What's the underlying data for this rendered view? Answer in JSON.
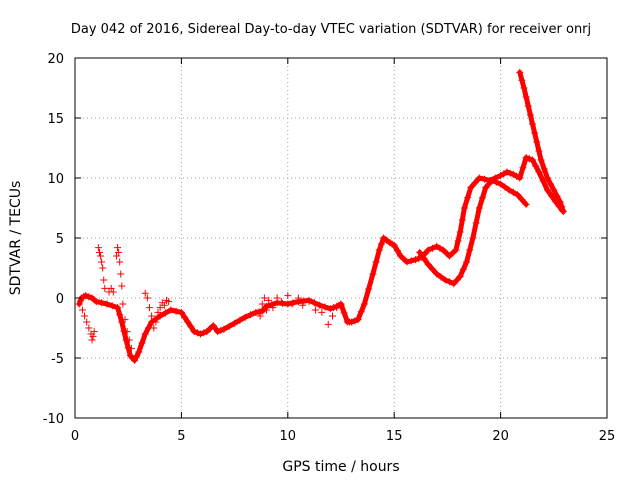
{
  "chart_data": {
    "type": "scatter",
    "title": "Day 042 of 2016, Sidereal Day-to-day VTEC variation (SDTVAR) for receiver onrj",
    "xlabel": "GPS time / hours",
    "ylabel": "SDTVAR / TECUs",
    "xlim": [
      0,
      25
    ],
    "ylim": [
      -10,
      20
    ],
    "xticks": [
      0,
      5,
      10,
      15,
      20,
      25
    ],
    "yticks": [
      -10,
      -5,
      0,
      5,
      10,
      15,
      20
    ],
    "grid": true,
    "marker": "+",
    "color": "#ff0000",
    "series": [
      {
        "name": "main",
        "kind": "dense",
        "x": [
          0.2,
          0.3,
          0.5,
          0.8,
          1.0,
          1.5,
          2.0,
          2.2,
          2.4,
          2.6,
          2.8,
          3.0,
          3.3,
          3.6,
          4.0,
          4.5,
          5.0,
          5.3,
          5.6,
          5.9,
          6.2,
          6.5,
          6.7,
          7.0,
          7.5,
          8.0,
          8.5,
          8.8,
          9.0,
          9.5,
          10.0,
          10.5,
          11.0,
          11.5,
          12.0,
          12.3,
          12.5,
          12.8,
          13.0,
          13.3,
          13.6,
          14.0,
          14.3,
          14.5,
          14.8,
          15.0,
          15.3,
          15.6,
          16.0,
          16.3,
          16.6,
          17.0,
          17.3,
          17.6,
          17.9,
          18.1,
          18.3,
          18.6,
          19.0,
          19.5,
          20.0,
          20.3,
          20.6,
          20.9,
          21.2,
          21.5,
          21.8,
          22.2,
          22.6,
          22.9
        ],
        "y": [
          -0.5,
          0.0,
          0.2,
          0.0,
          -0.3,
          -0.5,
          -0.8,
          -2.0,
          -3.5,
          -4.8,
          -5.2,
          -4.5,
          -3.0,
          -2.0,
          -1.5,
          -1.0,
          -1.2,
          -2.0,
          -2.8,
          -3.0,
          -2.8,
          -2.3,
          -2.8,
          -2.6,
          -2.1,
          -1.6,
          -1.2,
          -1.1,
          -0.7,
          -0.4,
          -0.5,
          -0.3,
          -0.2,
          -0.6,
          -0.9,
          -0.7,
          -0.5,
          -2.0,
          -2.0,
          -1.8,
          -0.5,
          2.0,
          4.0,
          5.0,
          4.6,
          4.4,
          3.5,
          3.0,
          3.2,
          3.4,
          4.0,
          4.3,
          4.0,
          3.5,
          4.0,
          5.5,
          7.5,
          9.2,
          10.0,
          9.8,
          10.2,
          10.5,
          10.3,
          10.0,
          11.7,
          11.5,
          10.5,
          9.0,
          8.0,
          7.3
        ]
      },
      {
        "name": "branch-a",
        "kind": "dense",
        "x": [
          16.2,
          16.6,
          17.0,
          17.4,
          17.8,
          18.1,
          18.4,
          18.7,
          19.0,
          19.3,
          19.6,
          20.0,
          20.4,
          20.8,
          21.2
        ],
        "y": [
          3.8,
          2.8,
          2.0,
          1.5,
          1.2,
          1.8,
          3.0,
          5.0,
          7.5,
          9.2,
          9.8,
          9.5,
          9.0,
          8.6,
          7.8
        ]
      },
      {
        "name": "branch-b",
        "kind": "dense",
        "x": [
          20.9,
          21.1,
          21.3,
          21.5,
          21.7,
          21.9,
          22.2,
          22.5,
          22.8,
          22.95
        ],
        "y": [
          18.8,
          17.5,
          16.0,
          14.5,
          13.0,
          11.5,
          10.0,
          9.0,
          8.0,
          7.2
        ]
      },
      {
        "name": "scatter-1",
        "kind": "markers",
        "x": [
          0.35,
          0.45,
          0.55,
          0.65,
          0.75,
          0.8,
          0.85,
          0.9,
          1.1,
          1.15,
          1.2,
          1.25,
          1.3,
          1.35,
          1.4,
          1.6,
          1.7,
          1.8,
          1.95,
          2.0,
          2.05,
          2.1,
          2.15,
          2.2,
          2.25,
          2.35,
          2.45,
          2.55,
          2.65
        ],
        "y": [
          -1.0,
          -1.5,
          -2.0,
          -2.5,
          -3.0,
          -3.5,
          -3.2,
          -2.8,
          4.2,
          3.8,
          3.5,
          3.0,
          2.5,
          1.5,
          0.8,
          0.5,
          0.8,
          0.5,
          3.5,
          4.2,
          3.8,
          3.0,
          2.0,
          1.0,
          -0.5,
          -1.8,
          -2.8,
          -3.5,
          -4.2
        ]
      },
      {
        "name": "scatter-2",
        "kind": "markers",
        "x": [
          3.3,
          3.4,
          3.5,
          3.6,
          3.7,
          3.8,
          3.9,
          4.0,
          4.1,
          4.2,
          4.3,
          4.4
        ],
        "y": [
          0.4,
          0.0,
          -0.8,
          -1.5,
          -2.5,
          -2.0,
          -1.2,
          -0.8,
          -0.4,
          -0.6,
          -0.2,
          -0.3
        ]
      },
      {
        "name": "scatter-3",
        "kind": "markers",
        "x": [
          8.7,
          8.8,
          8.9,
          9.0,
          9.1,
          9.3,
          9.5,
          9.7,
          10.0,
          10.2,
          10.5,
          10.7,
          11.0,
          11.3,
          11.6,
          11.9,
          12.1,
          12.3,
          12.5
        ],
        "y": [
          -1.5,
          -0.5,
          0.0,
          -1.0,
          -0.2,
          -0.8,
          0.0,
          -0.3,
          0.2,
          -0.5,
          0.0,
          -0.6,
          -0.3,
          -1.0,
          -1.2,
          -2.2,
          -1.5,
          -0.8,
          -0.6
        ]
      }
    ]
  }
}
